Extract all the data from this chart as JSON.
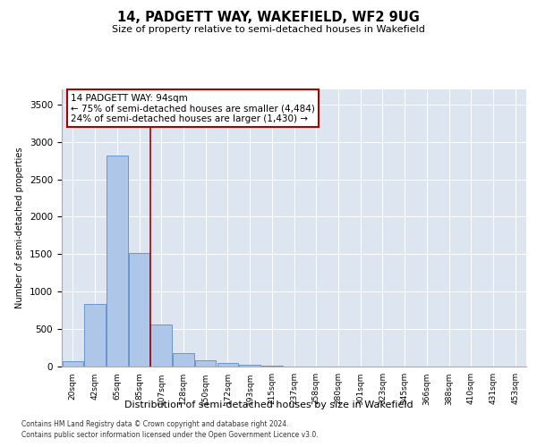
{
  "title": "14, PADGETT WAY, WAKEFIELD, WF2 9UG",
  "subtitle": "Size of property relative to semi-detached houses in Wakefield",
  "xlabel": "Distribution of semi-detached houses by size in Wakefield",
  "ylabel": "Number of semi-detached properties",
  "footnote1": "Contains HM Land Registry data © Crown copyright and database right 2024.",
  "footnote2": "Contains public sector information licensed under the Open Government Licence v3.0.",
  "annotation_title": "14 PADGETT WAY: 94sqm",
  "annotation_line1": "← 75% of semi-detached houses are smaller (4,484)",
  "annotation_line2": "24% of semi-detached houses are larger (1,430) →",
  "bar_color": "#aec6e8",
  "bar_edge_color": "#5b8cc8",
  "vline_color": "#aa0000",
  "annotation_box_edgecolor": "#aa0000",
  "background_color": "#dde5f0",
  "categories": [
    "20sqm",
    "42sqm",
    "65sqm",
    "85sqm",
    "107sqm",
    "128sqm",
    "150sqm",
    "172sqm",
    "193sqm",
    "215sqm",
    "237sqm",
    "258sqm",
    "280sqm",
    "301sqm",
    "323sqm",
    "345sqm",
    "366sqm",
    "388sqm",
    "410sqm",
    "431sqm",
    "453sqm"
  ],
  "values": [
    75,
    840,
    2820,
    1510,
    560,
    175,
    85,
    45,
    18,
    7,
    3,
    1,
    1,
    0,
    0,
    0,
    0,
    0,
    0,
    0,
    0
  ],
  "ylim": [
    0,
    3700
  ],
  "yticks": [
    0,
    500,
    1000,
    1500,
    2000,
    2500,
    3000,
    3500
  ],
  "vline_x": 3.5
}
